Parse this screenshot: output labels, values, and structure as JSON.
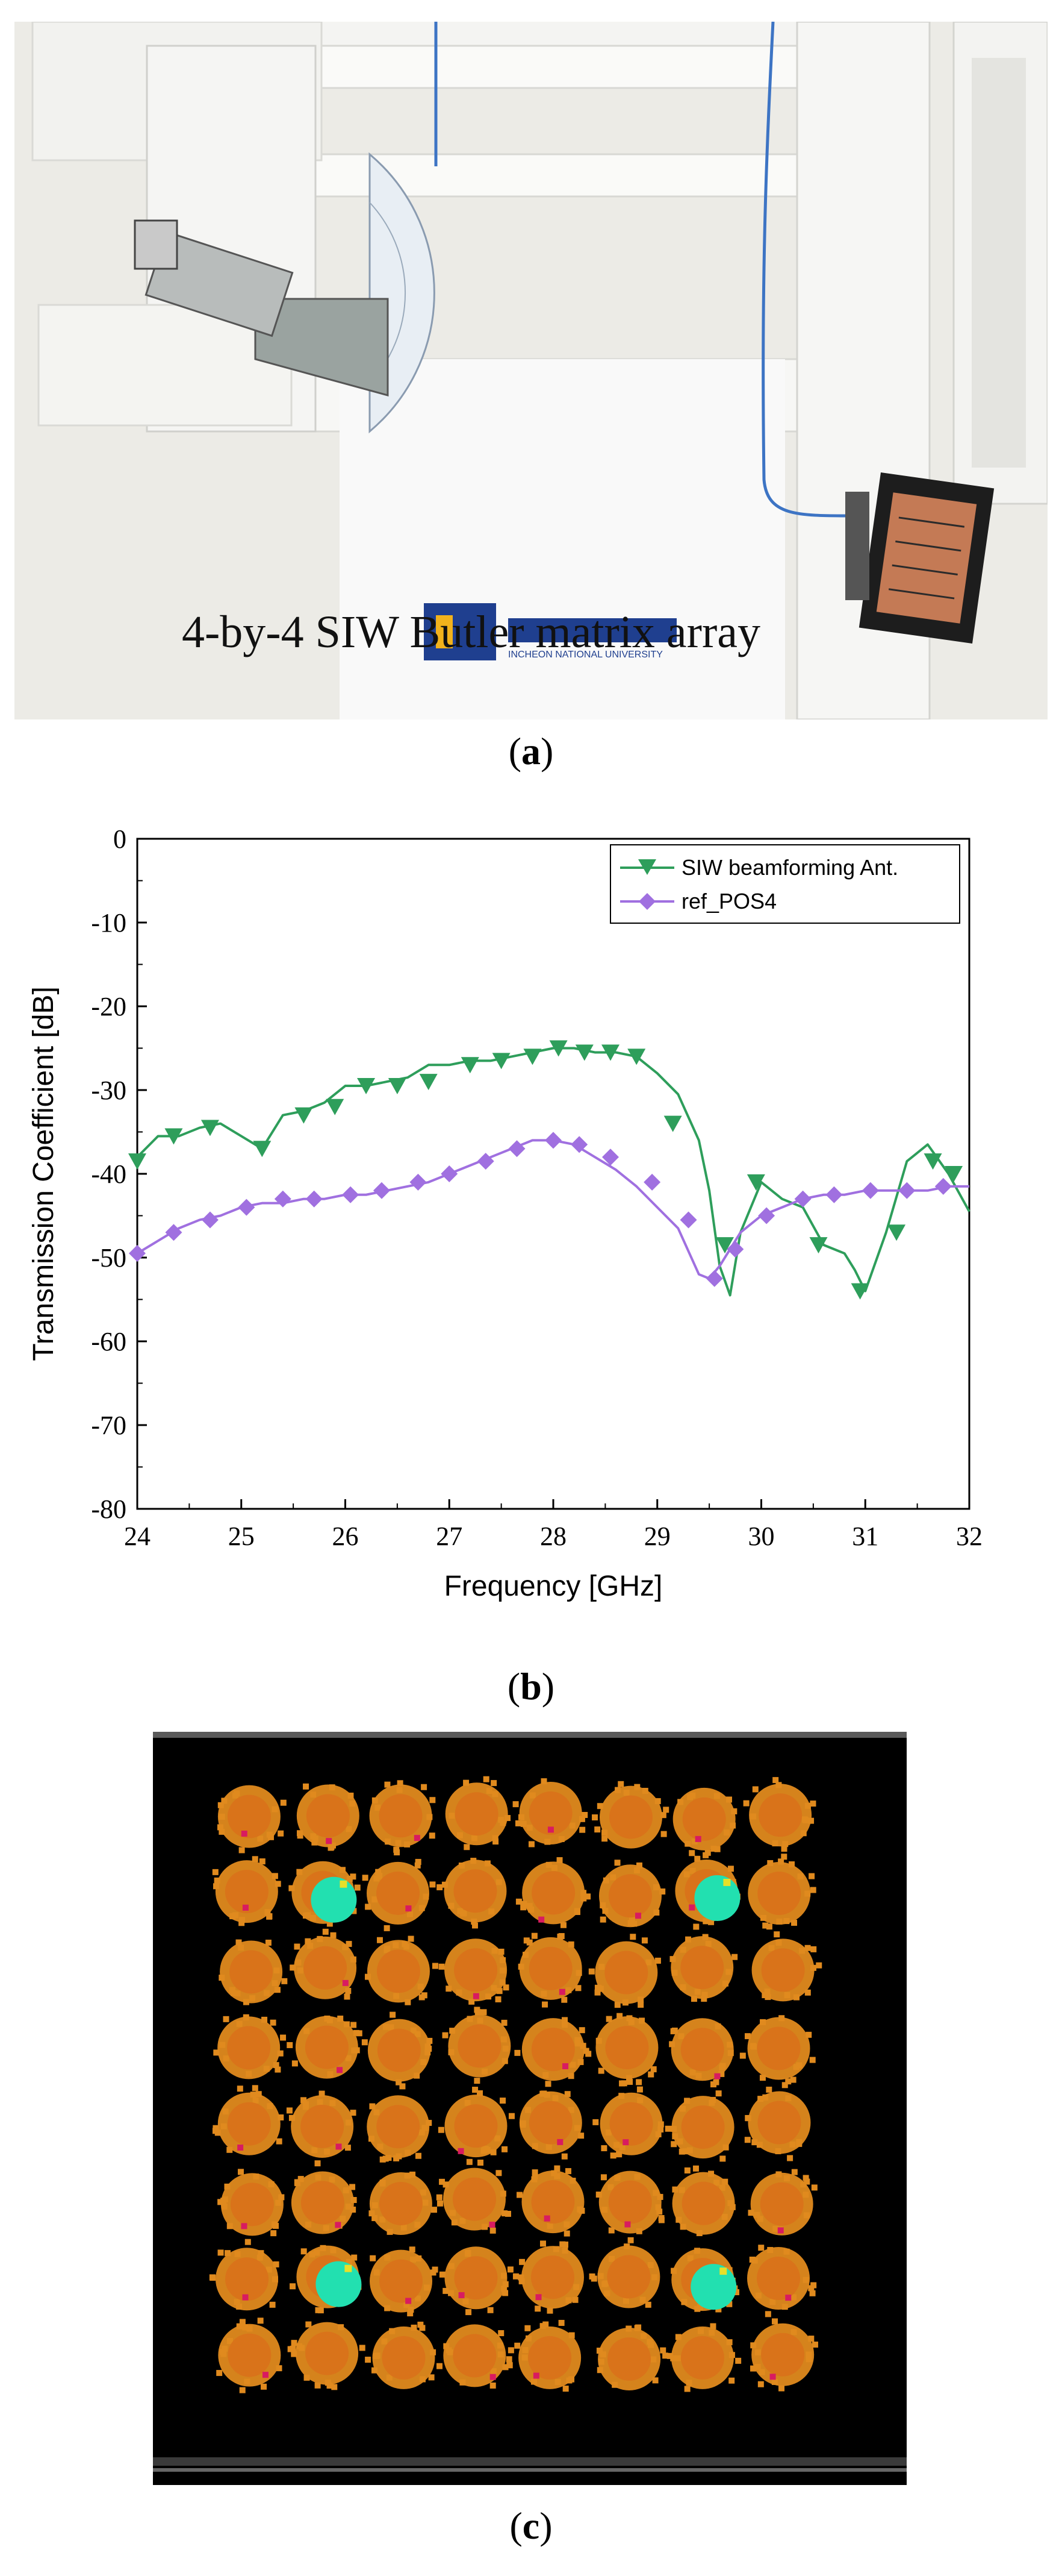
{
  "panel_a": {
    "overlay_text": "4-by-4 SIW Butler matrix array",
    "caption_open": "(",
    "caption_letter": "a",
    "caption_close": ")",
    "logo_text": "INCHEON NATIONAL UNIVERSITY"
  },
  "panel_b": {
    "caption_open": "(",
    "caption_letter": "b",
    "caption_close": ")"
  },
  "panel_c": {
    "caption_open": "(",
    "caption_letter": "c",
    "caption_close": ")",
    "grid_rows": 8,
    "grid_cols": 8,
    "highlight_cells": [
      [
        1,
        1
      ],
      [
        1,
        6
      ],
      [
        6,
        1
      ],
      [
        6,
        6
      ]
    ],
    "colors": {
      "background": "#000000",
      "spot": "#e08a1e",
      "spot_core": "#d9731a",
      "highlight": "#22e0b0",
      "accent": "#d81b60"
    }
  },
  "chart_data": {
    "type": "line",
    "title": "",
    "xlabel": "Frequency [GHz]",
    "ylabel": "Transmission Coefficient [dB]",
    "xlim": [
      24,
      32
    ],
    "ylim": [
      -80,
      0
    ],
    "xticks": [
      "24",
      "25",
      "26",
      "27",
      "28",
      "29",
      "30",
      "31",
      "32"
    ],
    "yticks": [
      "0",
      "-10",
      "-20",
      "-30",
      "-40",
      "-50",
      "-60",
      "-70",
      "-80"
    ],
    "legend_position": "top-right",
    "series": [
      {
        "name": "SIW beamforming Ant.",
        "color": "#2e9e5b",
        "marker": "triangle-down",
        "x": [
          24.0,
          24.2,
          24.4,
          24.6,
          24.8,
          25.0,
          25.2,
          25.4,
          25.6,
          25.8,
          26.0,
          26.2,
          26.4,
          26.6,
          26.8,
          27.0,
          27.2,
          27.4,
          27.6,
          27.8,
          28.0,
          28.2,
          28.4,
          28.6,
          28.8,
          29.0,
          29.2,
          29.4,
          29.5,
          29.6,
          29.7,
          29.8,
          30.0,
          30.2,
          30.4,
          30.6,
          30.8,
          30.9,
          31.0,
          31.2,
          31.4,
          31.6,
          31.8,
          32.0
        ],
        "y": [
          -38.0,
          -35.5,
          -35.5,
          -34.5,
          -34.0,
          -35.5,
          -37.0,
          -33.0,
          -32.5,
          -31.5,
          -29.5,
          -29.5,
          -29.0,
          -28.5,
          -27.0,
          -27.0,
          -26.5,
          -26.5,
          -26.0,
          -25.5,
          -25.0,
          -25.0,
          -25.5,
          -25.5,
          -26.0,
          -28.0,
          -30.5,
          -36.0,
          -42.0,
          -51.0,
          -54.5,
          -47.0,
          -41.0,
          -43.0,
          -44.0,
          -48.5,
          -49.5,
          -51.5,
          -54.0,
          -47.0,
          -38.5,
          -36.5,
          -40.0,
          -44.5
        ],
        "marker_x": [
          24.0,
          24.35,
          24.7,
          25.2,
          25.6,
          25.9,
          26.2,
          26.5,
          26.8,
          27.2,
          27.5,
          27.8,
          28.05,
          28.3,
          28.55,
          28.8,
          29.15,
          29.65,
          29.95,
          30.55,
          30.95,
          31.3,
          31.65,
          31.85
        ],
        "marker_y": [
          -38.5,
          -35.5,
          -34.5,
          -37.0,
          -33.0,
          -32.0,
          -29.5,
          -29.5,
          -29.0,
          -27.0,
          -26.5,
          -26.0,
          -25.0,
          -25.5,
          -25.5,
          -26.0,
          -34.0,
          -48.5,
          -41.0,
          -48.5,
          -54.0,
          -47.0,
          -38.5,
          -40.0
        ]
      },
      {
        "name": "ref_POS4",
        "color": "#a070e0",
        "marker": "diamond",
        "x": [
          24.0,
          24.2,
          24.4,
          24.6,
          24.8,
          25.0,
          25.2,
          25.4,
          25.6,
          25.8,
          26.0,
          26.2,
          26.4,
          26.6,
          26.8,
          27.0,
          27.2,
          27.4,
          27.6,
          27.8,
          28.0,
          28.2,
          28.4,
          28.6,
          28.8,
          29.0,
          29.2,
          29.4,
          29.5,
          29.6,
          29.8,
          30.0,
          30.2,
          30.4,
          30.6,
          30.8,
          31.0,
          31.2,
          31.4,
          31.6,
          31.8,
          32.0
        ],
        "y": [
          -49.5,
          -48.0,
          -46.5,
          -45.5,
          -45.0,
          -44.0,
          -43.5,
          -43.5,
          -43.0,
          -43.0,
          -42.5,
          -42.5,
          -42.0,
          -41.5,
          -41.0,
          -40.0,
          -39.0,
          -38.0,
          -37.0,
          -36.0,
          -36.0,
          -36.5,
          -38.0,
          -39.5,
          -41.5,
          -44.0,
          -46.5,
          -52.0,
          -52.5,
          -51.0,
          -47.0,
          -45.0,
          -44.0,
          -43.0,
          -42.5,
          -42.5,
          -42.0,
          -42.0,
          -42.0,
          -42.0,
          -41.5,
          -41.5
        ],
        "marker_x": [
          24.0,
          24.35,
          24.7,
          25.05,
          25.4,
          25.7,
          26.05,
          26.35,
          26.7,
          27.0,
          27.35,
          27.65,
          28.0,
          28.25,
          28.55,
          28.95,
          29.3,
          29.55,
          29.75,
          30.05,
          30.4,
          30.7,
          31.05,
          31.4,
          31.75
        ],
        "marker_y": [
          -49.5,
          -47.0,
          -45.5,
          -44.0,
          -43.0,
          -43.0,
          -42.5,
          -42.0,
          -41.0,
          -40.0,
          -38.5,
          -37.0,
          -36.0,
          -36.5,
          -38.0,
          -41.0,
          -45.5,
          -52.5,
          -49.0,
          -45.0,
          -43.0,
          -42.5,
          -42.0,
          -42.0,
          -41.5
        ]
      }
    ]
  }
}
